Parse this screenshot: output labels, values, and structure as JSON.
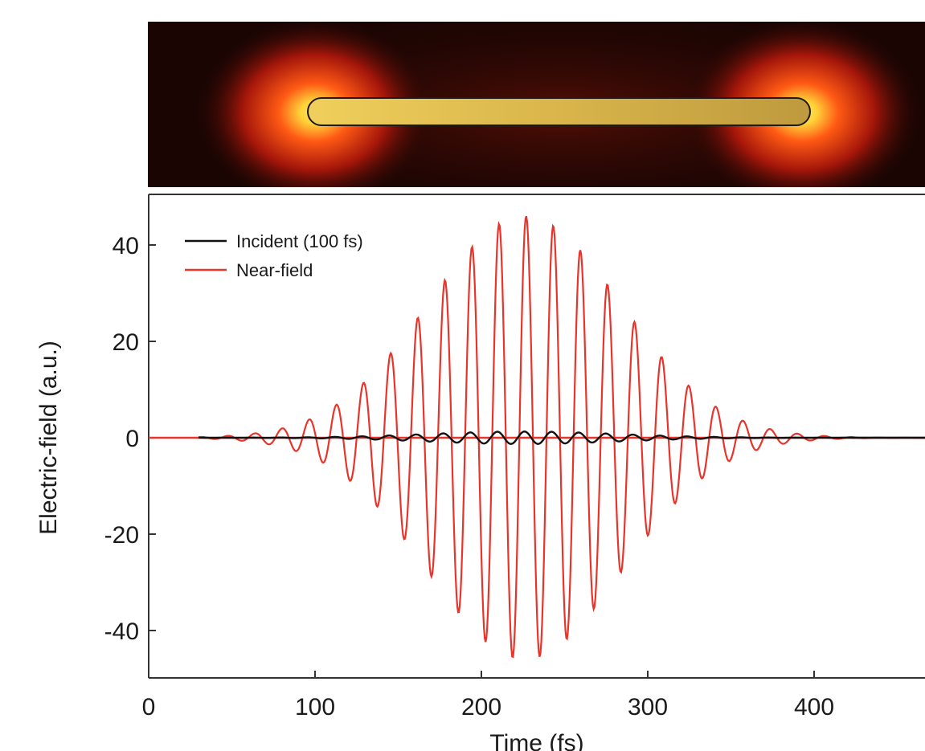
{
  "figure": {
    "inset": {
      "description_visible": false,
      "colors": {
        "background": "#1a0503",
        "glow": "#ff3b10",
        "hot": "#ffe14a",
        "rod": "#d8b64a",
        "rod_outline": "#1a1a1a"
      }
    },
    "chart_data": {
      "type": "line",
      "title": "",
      "xlabel": "Time (fs)",
      "ylabel": "Electric-field (a.u.)",
      "xlim": [
        0,
        470
      ],
      "ylim": [
        -50,
        50
      ],
      "xticks": [
        0,
        100,
        200,
        300,
        400
      ],
      "yticks": [
        -40,
        -20,
        0,
        20,
        40
      ],
      "xtick_labels": [
        "0",
        "100",
        "200",
        "300",
        "400"
      ],
      "ytick_labels": [
        "-40",
        "-20",
        "0",
        "20",
        "40"
      ],
      "grid": false,
      "legend_position": "top-left",
      "series": [
        {
          "name": "Incident (100 fs)",
          "color": "#111111",
          "kind": "gaussian-wave",
          "center_fs": 225,
          "period_fs": 16.3,
          "peak_amplitude": 1.3,
          "envelope_sigma_fs": 80
        },
        {
          "name": "Near-field",
          "color": "#e8342a",
          "kind": "gaussian-wave",
          "center_fs": 226,
          "period_fs": 16.3,
          "peak_amplitude": 46,
          "envelope_sigma_fs": 82,
          "peaks": [
            {
              "x": 90,
              "y": 4
            },
            {
              "x": 106,
              "y": 7
            },
            {
              "x": 123,
              "y": 11
            },
            {
              "x": 139,
              "y": 17
            },
            {
              "x": 156,
              "y": 24
            },
            {
              "x": 172,
              "y": 31
            },
            {
              "x": 188,
              "y": 38
            },
            {
              "x": 205,
              "y": 43
            },
            {
              "x": 221,
              "y": 45
            },
            {
              "x": 238,
              "y": 44
            },
            {
              "x": 254,
              "y": 41
            },
            {
              "x": 270,
              "y": 35
            },
            {
              "x": 287,
              "y": 28
            },
            {
              "x": 303,
              "y": 21
            },
            {
              "x": 320,
              "y": 14
            },
            {
              "x": 336,
              "y": 9
            },
            {
              "x": 352,
              "y": 6
            },
            {
              "x": 369,
              "y": 3
            }
          ],
          "troughs": [
            {
              "x": 114,
              "y": -5
            },
            {
              "x": 131,
              "y": -9
            },
            {
              "x": 147,
              "y": -14
            },
            {
              "x": 164,
              "y": -20
            },
            {
              "x": 180,
              "y": -28
            },
            {
              "x": 197,
              "y": -35
            },
            {
              "x": 213,
              "y": -41
            },
            {
              "x": 230,
              "y": -46
            },
            {
              "x": 246,
              "y": -46
            },
            {
              "x": 262,
              "y": -42
            },
            {
              "x": 279,
              "y": -37
            },
            {
              "x": 295,
              "y": -32
            },
            {
              "x": 311,
              "y": -24
            },
            {
              "x": 328,
              "y": -18
            },
            {
              "x": 344,
              "y": -12
            },
            {
              "x": 361,
              "y": -7
            },
            {
              "x": 377,
              "y": -4
            }
          ]
        }
      ],
      "zero_line_color": "#e8342a"
    }
  }
}
